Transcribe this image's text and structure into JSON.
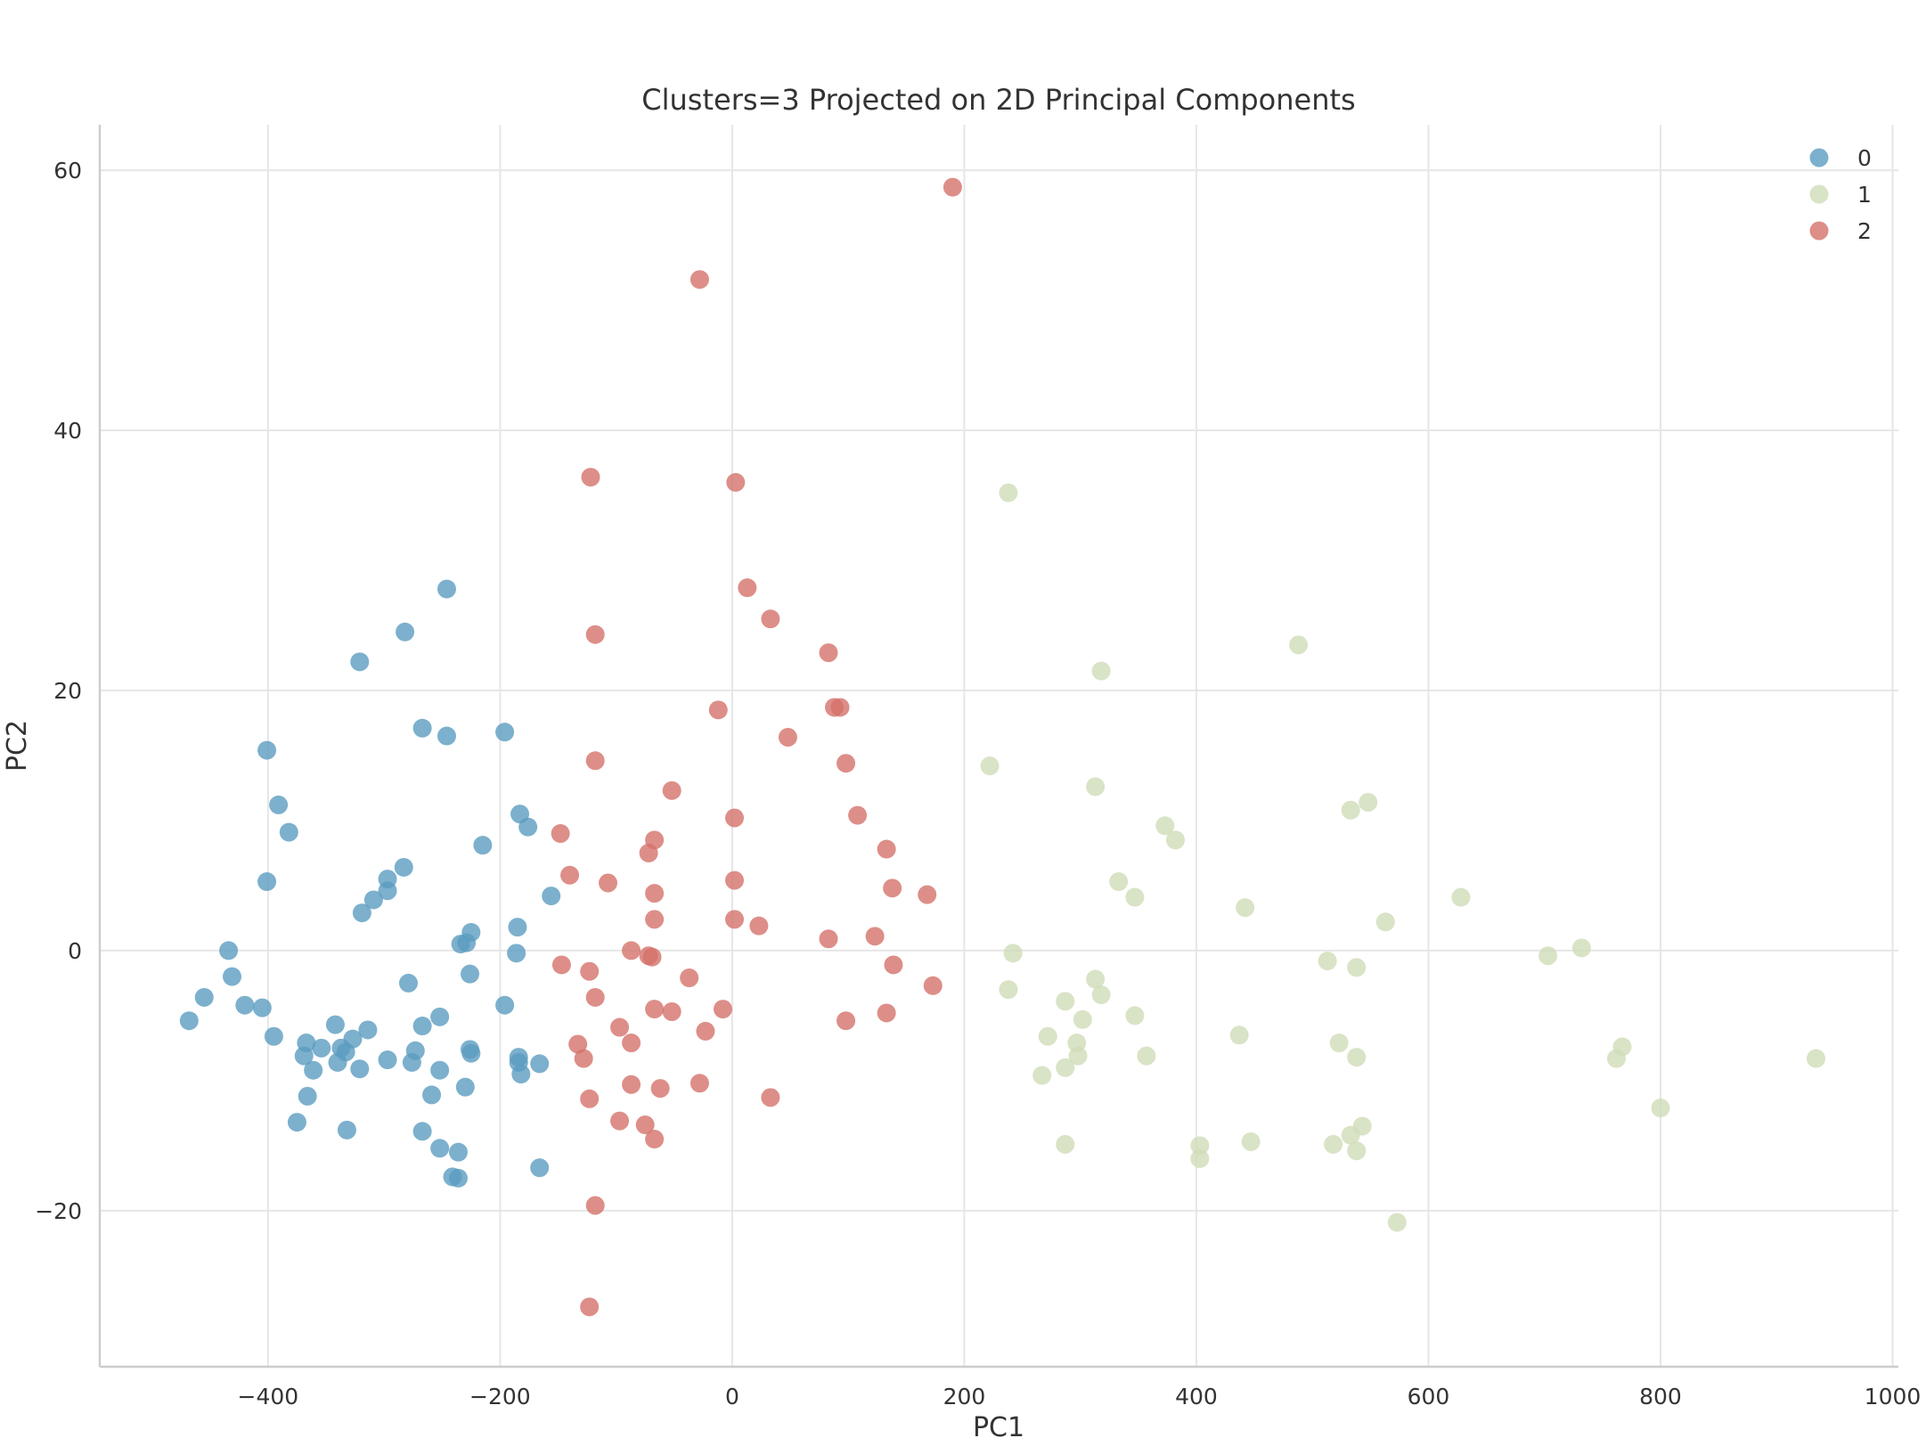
{
  "chart_data": {
    "type": "scatter",
    "title": "Clusters=3 Projected on 2D Principal Components",
    "xlabel": "PC1",
    "ylabel": "PC2",
    "xlim": [
      -545,
      1005
    ],
    "ylim": [
      -32,
      63.5
    ],
    "xticks": [
      -400,
      -200,
      0,
      200,
      400,
      600,
      800,
      1000
    ],
    "yticks": [
      -20,
      0,
      20,
      40,
      60
    ],
    "xtick_labels": [
      "−400",
      "−200",
      "0",
      "200",
      "400",
      "600",
      "800",
      "1000"
    ],
    "ytick_labels": [
      "−20",
      "0",
      "20",
      "40",
      "60"
    ],
    "grid": true,
    "legend_position": "top-right",
    "series": [
      {
        "name": "0",
        "color": "#5b9cc0",
        "points": [
          [
            -468,
            -5.4
          ],
          [
            -455,
            -3.6
          ],
          [
            -434,
            0
          ],
          [
            -431,
            -2.0
          ],
          [
            -420,
            -4.2
          ],
          [
            -405,
            -4.4
          ],
          [
            -401,
            15.4
          ],
          [
            -401,
            5.3
          ],
          [
            -395,
            -6.6
          ],
          [
            -391,
            11.2
          ],
          [
            -382,
            9.1
          ],
          [
            -375,
            -13.2
          ],
          [
            -369,
            -8.1
          ],
          [
            -367,
            -7.1
          ],
          [
            -366,
            -11.2
          ],
          [
            -361,
            -9.2
          ],
          [
            -354,
            -7.5
          ],
          [
            -342,
            -5.7
          ],
          [
            -340,
            -8.6
          ],
          [
            -337,
            -7.5
          ],
          [
            -333,
            -7.8
          ],
          [
            -332,
            -13.8
          ],
          [
            -327,
            -6.8
          ],
          [
            -321,
            22.2
          ],
          [
            -321,
            -9.1
          ],
          [
            -319,
            2.9
          ],
          [
            -314,
            -6.1
          ],
          [
            -309,
            3.9
          ],
          [
            -297,
            4.6
          ],
          [
            -297,
            5.5
          ],
          [
            -297,
            -8.4
          ],
          [
            -283,
            6.4
          ],
          [
            -282,
            24.5
          ],
          [
            -279,
            -2.5
          ],
          [
            -276,
            -8.6
          ],
          [
            -273,
            -7.7
          ],
          [
            -267,
            17.1
          ],
          [
            -267,
            -5.8
          ],
          [
            -267,
            -13.9
          ],
          [
            -259,
            -11.1
          ],
          [
            -252,
            -5.1
          ],
          [
            -252,
            -9.2
          ],
          [
            -252,
            -15.2
          ],
          [
            -246,
            27.8
          ],
          [
            -246,
            16.5
          ],
          [
            -241,
            -17.4
          ],
          [
            -236,
            -15.5
          ],
          [
            -236,
            -17.5
          ],
          [
            -234,
            0.5
          ],
          [
            -230,
            -10.5
          ],
          [
            -229,
            0.6
          ],
          [
            -226,
            -1.8
          ],
          [
            -226,
            -7.6
          ],
          [
            -225,
            -7.9
          ],
          [
            -225,
            1.4
          ],
          [
            -196,
            16.8
          ],
          [
            -196,
            -4.2
          ],
          [
            -186,
            -0.2
          ],
          [
            -185,
            1.8
          ],
          [
            -184,
            -8.2
          ],
          [
            -184,
            -8.6
          ],
          [
            -183,
            10.5
          ],
          [
            -182,
            -9.5
          ],
          [
            -176,
            9.5
          ],
          [
            -166,
            -8.7
          ],
          [
            -166,
            -16.7
          ],
          [
            -156,
            4.2
          ],
          [
            -215,
            8.1
          ]
        ]
      },
      {
        "name": "1",
        "color": "#cfdcb8",
        "points": [
          [
            222,
            14.2
          ],
          [
            238,
            35.2
          ],
          [
            238,
            -3.0
          ],
          [
            242,
            -0.2
          ],
          [
            267,
            -9.6
          ],
          [
            272,
            -6.6
          ],
          [
            287,
            -3.9
          ],
          [
            287,
            -9.0
          ],
          [
            287,
            -14.9
          ],
          [
            297,
            -7.1
          ],
          [
            298,
            -8.1
          ],
          [
            302,
            -5.3
          ],
          [
            313,
            -2.2
          ],
          [
            313,
            12.6
          ],
          [
            318,
            21.5
          ],
          [
            318,
            -3.4
          ],
          [
            333,
            5.3
          ],
          [
            347,
            -5.0
          ],
          [
            347,
            4.1
          ],
          [
            357,
            -8.1
          ],
          [
            373,
            9.6
          ],
          [
            382,
            8.5
          ],
          [
            403,
            -15.0
          ],
          [
            403,
            -16.0
          ],
          [
            437,
            -6.5
          ],
          [
            442,
            3.3
          ],
          [
            447,
            -14.7
          ],
          [
            488,
            23.5
          ],
          [
            513,
            -0.8
          ],
          [
            518,
            -14.9
          ],
          [
            523,
            -7.1
          ],
          [
            533,
            -14.2
          ],
          [
            533,
            10.8
          ],
          [
            538,
            -1.3
          ],
          [
            538,
            -8.2
          ],
          [
            538,
            -15.4
          ],
          [
            543,
            -13.5
          ],
          [
            548,
            11.4
          ],
          [
            563,
            2.2
          ],
          [
            573,
            -20.9
          ],
          [
            628,
            4.1
          ],
          [
            703,
            -0.4
          ],
          [
            732,
            0.2
          ],
          [
            762,
            -8.3
          ],
          [
            767,
            -7.4
          ],
          [
            800,
            -12.1
          ],
          [
            934,
            -8.3
          ]
        ]
      },
      {
        "name": "2",
        "color": "#d4726a",
        "points": [
          [
            -148,
            9.0
          ],
          [
            -147,
            -1.1
          ],
          [
            -140,
            5.8
          ],
          [
            -133,
            -7.2
          ],
          [
            -128,
            -8.3
          ],
          [
            -123,
            -1.6
          ],
          [
            -123,
            -11.4
          ],
          [
            -123,
            -27.4
          ],
          [
            -122,
            36.4
          ],
          [
            -118,
            24.3
          ],
          [
            -118,
            14.6
          ],
          [
            -118,
            -3.6
          ],
          [
            -118,
            -19.6
          ],
          [
            -107,
            5.2
          ],
          [
            -97,
            -5.9
          ],
          [
            -97,
            -13.1
          ],
          [
            -87,
            0.0
          ],
          [
            -87,
            -7.1
          ],
          [
            -87,
            -10.3
          ],
          [
            -75,
            -13.4
          ],
          [
            -72,
            -0.4
          ],
          [
            -72,
            7.5
          ],
          [
            -69,
            -0.5
          ],
          [
            -67,
            8.5
          ],
          [
            -67,
            4.4
          ],
          [
            -67,
            2.4
          ],
          [
            -67,
            -4.5
          ],
          [
            -67,
            -14.5
          ],
          [
            -62,
            -10.6
          ],
          [
            -52,
            12.3
          ],
          [
            -52,
            -4.7
          ],
          [
            -37,
            -2.1
          ],
          [
            -28,
            51.6
          ],
          [
            -28,
            -10.2
          ],
          [
            -23,
            -6.2
          ],
          [
            -12,
            18.5
          ],
          [
            -8,
            -4.5
          ],
          [
            2,
            10.2
          ],
          [
            2,
            5.4
          ],
          [
            2,
            2.4
          ],
          [
            3,
            36.0
          ],
          [
            13,
            27.9
          ],
          [
            23,
            1.9
          ],
          [
            33,
            25.5
          ],
          [
            33,
            -11.3
          ],
          [
            48,
            16.4
          ],
          [
            83,
            22.9
          ],
          [
            83,
            0.9
          ],
          [
            88,
            18.7
          ],
          [
            93,
            18.7
          ],
          [
            98,
            14.4
          ],
          [
            98,
            -5.4
          ],
          [
            108,
            10.4
          ],
          [
            123,
            1.1
          ],
          [
            133,
            7.8
          ],
          [
            133,
            -4.8
          ],
          [
            138,
            4.8
          ],
          [
            139,
            -1.1
          ],
          [
            168,
            4.3
          ],
          [
            173,
            -2.7
          ],
          [
            190,
            58.7
          ]
        ]
      }
    ]
  }
}
